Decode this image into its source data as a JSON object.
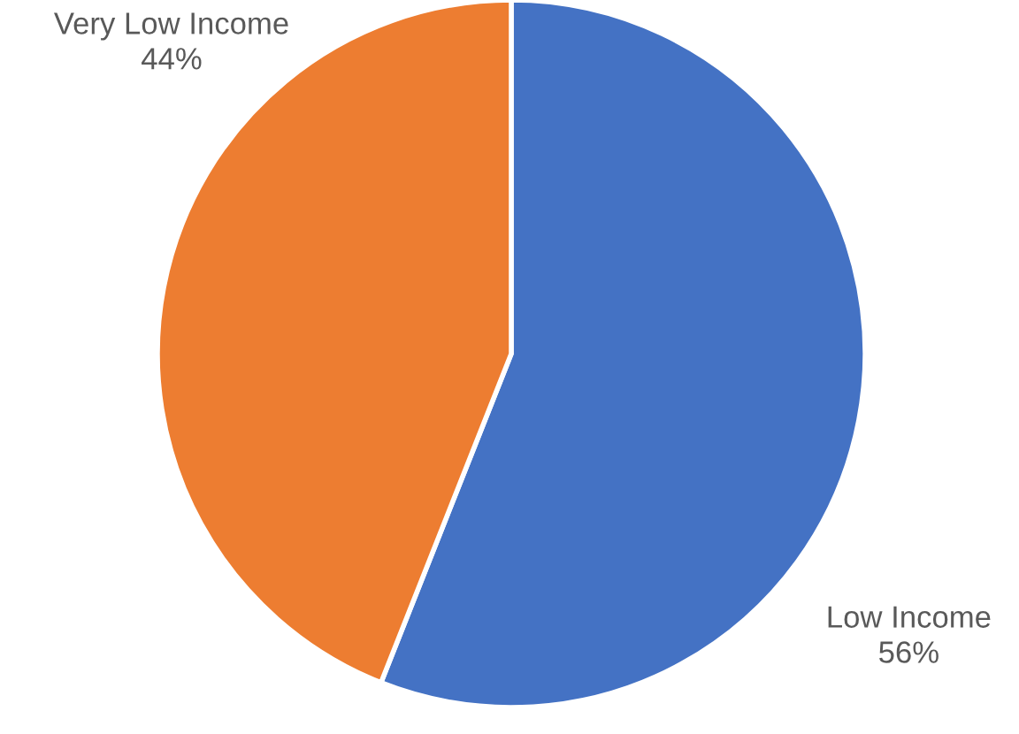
{
  "chart_data": {
    "type": "pie",
    "categories": [
      "Low Income",
      "Very Low Income"
    ],
    "values": [
      56,
      44
    ],
    "colors": [
      "#4472c4",
      "#ed7d31"
    ],
    "value_labels": [
      "56%",
      "44%"
    ],
    "legend": false
  }
}
